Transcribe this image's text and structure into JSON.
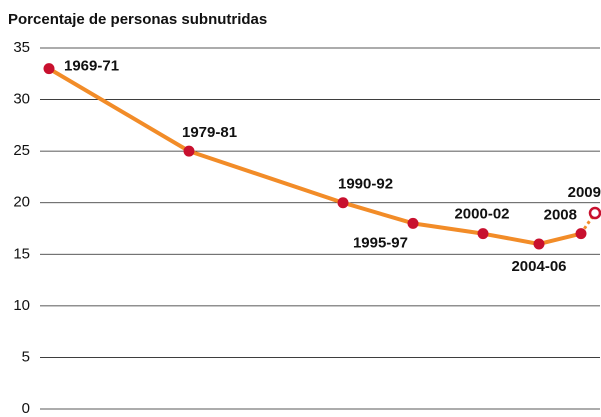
{
  "chart_data": {
    "type": "line",
    "title": "Porcentaje de personas subnutridas",
    "categories": [
      "1969-71",
      "1979-81",
      "1990-92",
      "1995-97",
      "2000-02",
      "2004-06",
      "2008",
      "2009"
    ],
    "values": [
      33,
      25,
      20,
      18,
      17,
      16,
      17,
      19
    ],
    "line_color": "#f28c28",
    "marker_color": "#c8102e",
    "ylim": [
      0,
      35
    ],
    "yticks": [
      0,
      5,
      10,
      15,
      20,
      25,
      30,
      35
    ],
    "grid": true
  }
}
